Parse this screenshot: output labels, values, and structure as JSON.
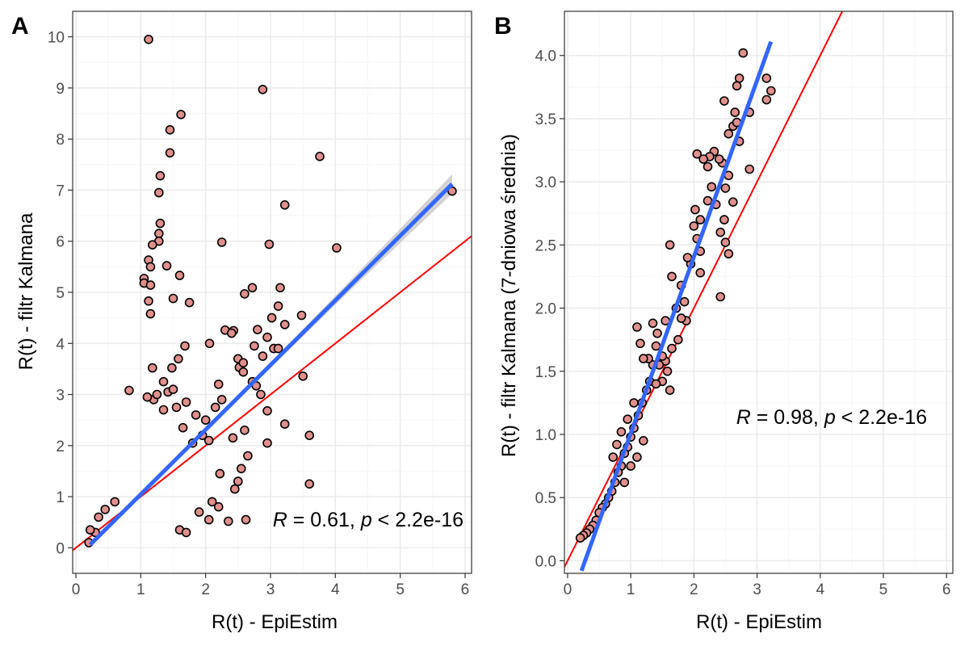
{
  "colors": {
    "points_fill": "#e0908c",
    "points_stroke": "#000000",
    "fit_line": "#3366ff",
    "identity_line": "#ff0000",
    "confidence_band": "#bfbfbf",
    "grid_major": "#ebebeb",
    "grid_minor": "#f5f5f5",
    "panel_border": "#333333"
  },
  "chart_data": [
    {
      "type": "scatter",
      "panel_label": "A",
      "xlabel": "R(t) - EpiEstim",
      "ylabel": "R(t) - filtr Kalmana",
      "xlim": [
        -0.05,
        6.1
      ],
      "ylim": [
        -0.5,
        10.5
      ],
      "xticks": [
        "0",
        "1",
        "2",
        "3",
        "4",
        "5",
        "6"
      ],
      "yticks": [
        "0",
        "1",
        "2",
        "3",
        "4",
        "5",
        "6",
        "7",
        "8",
        "9",
        "10"
      ],
      "grid": true,
      "annotation": {
        "r_symbol": "R",
        "r_text": " = 0.61, ",
        "p_symbol": "p",
        "p_text": " < 2.2e-16"
      },
      "identity_line": {
        "slope": 1,
        "intercept": 0
      },
      "fit_line": {
        "x": [
          0.22,
          5.8
        ],
        "y": [
          0.06,
          7.12
        ],
        "se_band": true
      },
      "points": [
        [
          1.12,
          9.95
        ],
        [
          2.88,
          8.97
        ],
        [
          1.62,
          8.48
        ],
        [
          1.45,
          8.18
        ],
        [
          1.45,
          7.73
        ],
        [
          3.76,
          7.66
        ],
        [
          1.3,
          7.28
        ],
        [
          1.28,
          6.95
        ],
        [
          5.8,
          6.98
        ],
        [
          3.22,
          6.71
        ],
        [
          1.3,
          6.35
        ],
        [
          1.28,
          6.15
        ],
        [
          1.28,
          6.0
        ],
        [
          2.25,
          5.98
        ],
        [
          2.98,
          5.94
        ],
        [
          1.18,
          5.93
        ],
        [
          4.02,
          5.87
        ],
        [
          1.12,
          5.63
        ],
        [
          1.15,
          5.5
        ],
        [
          1.4,
          5.52
        ],
        [
          1.6,
          5.33
        ],
        [
          1.05,
          5.27
        ],
        [
          1.05,
          5.18
        ],
        [
          1.15,
          5.14
        ],
        [
          2.72,
          5.09
        ],
        [
          3.15,
          5.09
        ],
        [
          2.6,
          4.97
        ],
        [
          1.5,
          4.88
        ],
        [
          1.12,
          4.83
        ],
        [
          1.75,
          4.8
        ],
        [
          3.12,
          4.73
        ],
        [
          1.15,
          4.58
        ],
        [
          3.48,
          4.55
        ],
        [
          3.02,
          4.5
        ],
        [
          3.22,
          4.37
        ],
        [
          2.8,
          4.27
        ],
        [
          2.3,
          4.26
        ],
        [
          2.43,
          4.25
        ],
        [
          2.4,
          4.2
        ],
        [
          1.68,
          3.95
        ],
        [
          2.06,
          4.0
        ],
        [
          2.95,
          4.12
        ],
        [
          2.75,
          3.95
        ],
        [
          3.05,
          3.9
        ],
        [
          3.12,
          3.9
        ],
        [
          2.88,
          3.75
        ],
        [
          1.58,
          3.7
        ],
        [
          2.5,
          3.7
        ],
        [
          2.52,
          3.53
        ],
        [
          2.58,
          3.62
        ],
        [
          1.18,
          3.52
        ],
        [
          1.48,
          3.52
        ],
        [
          3.5,
          3.36
        ],
        [
          2.58,
          3.44
        ],
        [
          2.72,
          3.25
        ],
        [
          2.78,
          3.17
        ],
        [
          2.2,
          3.2
        ],
        [
          2.85,
          3.0
        ],
        [
          2.95,
          2.68
        ],
        [
          3.22,
          2.42
        ],
        [
          3.6,
          2.2
        ],
        [
          2.6,
          2.3
        ],
        [
          2.42,
          2.15
        ],
        [
          2.95,
          2.05
        ],
        [
          2.65,
          1.8
        ],
        [
          2.55,
          1.55
        ],
        [
          2.22,
          1.45
        ],
        [
          2.5,
          1.3
        ],
        [
          2.45,
          1.15
        ],
        [
          2.62,
          0.55
        ],
        [
          3.6,
          1.25
        ],
        [
          2.1,
          0.9
        ],
        [
          2.2,
          0.8
        ],
        [
          2.05,
          0.55
        ],
        [
          2.35,
          0.52
        ],
        [
          1.9,
          0.7
        ],
        [
          1.6,
          0.35
        ],
        [
          1.7,
          0.3
        ],
        [
          0.2,
          0.1
        ],
        [
          0.3,
          0.3
        ],
        [
          0.22,
          0.35
        ],
        [
          0.35,
          0.6
        ],
        [
          0.45,
          0.75
        ],
        [
          0.6,
          0.9
        ],
        [
          1.35,
          3.25
        ],
        [
          1.42,
          3.05
        ],
        [
          1.2,
          2.9
        ],
        [
          0.82,
          3.08
        ],
        [
          1.55,
          2.75
        ],
        [
          1.85,
          2.6
        ],
        [
          2.0,
          2.5
        ],
        [
          1.1,
          2.95
        ],
        [
          1.25,
          3.0
        ],
        [
          1.95,
          2.2
        ],
        [
          1.65,
          2.35
        ],
        [
          2.15,
          2.75
        ],
        [
          2.25,
          2.9
        ],
        [
          1.8,
          2.05
        ],
        [
          2.05,
          2.1
        ],
        [
          1.5,
          3.1
        ],
        [
          1.7,
          2.85
        ],
        [
          1.35,
          2.7
        ]
      ]
    },
    {
      "type": "scatter",
      "panel_label": "B",
      "xlabel": "R(t) - EpiEstim",
      "ylabel": "R(t) - filtr Kalmana (7-dniowa średnia)",
      "xlim": [
        -0.05,
        6.1
      ],
      "ylim": [
        -0.1,
        4.35
      ],
      "xticks": [
        "0",
        "1",
        "2",
        "3",
        "4",
        "5",
        "6"
      ],
      "yticks": [
        "0.0",
        "0.5",
        "1.0",
        "1.5",
        "2.0",
        "2.5",
        "3.0",
        "3.5",
        "4.0"
      ],
      "grid": true,
      "annotation": {
        "r_symbol": "R",
        "r_text": " = 0.98, ",
        "p_symbol": "p",
        "p_text": " < 2.2e-16"
      },
      "identity_line": {
        "slope": 1,
        "intercept": 0
      },
      "fit_line": {
        "x": [
          0.22,
          3.22
        ],
        "y": [
          -0.08,
          4.11
        ],
        "se_band": false
      },
      "points": [
        [
          2.78,
          4.02
        ],
        [
          2.72,
          3.82
        ],
        [
          3.15,
          3.82
        ],
        [
          3.22,
          3.72
        ],
        [
          2.68,
          3.76
        ],
        [
          3.15,
          3.65
        ],
        [
          2.48,
          3.64
        ],
        [
          2.65,
          3.55
        ],
        [
          2.88,
          3.55
        ],
        [
          2.62,
          3.44
        ],
        [
          2.68,
          3.47
        ],
        [
          2.55,
          3.38
        ],
        [
          2.72,
          3.32
        ],
        [
          2.05,
          3.22
        ],
        [
          2.32,
          3.24
        ],
        [
          2.25,
          3.2
        ],
        [
          2.45,
          3.15
        ],
        [
          2.4,
          3.18
        ],
        [
          2.22,
          3.12
        ],
        [
          2.15,
          3.18
        ],
        [
          2.88,
          3.1
        ],
        [
          2.55,
          3.05
        ],
        [
          2.5,
          2.95
        ],
        [
          2.28,
          2.96
        ],
        [
          2.22,
          2.85
        ],
        [
          2.02,
          2.78
        ],
        [
          2.35,
          2.82
        ],
        [
          2.62,
          2.84
        ],
        [
          2.48,
          2.7
        ],
        [
          2.1,
          2.7
        ],
        [
          2.0,
          2.65
        ],
        [
          2.42,
          2.6
        ],
        [
          2.5,
          2.52
        ],
        [
          2.55,
          2.43
        ],
        [
          2.05,
          2.55
        ],
        [
          2.1,
          2.45
        ],
        [
          1.95,
          2.35
        ],
        [
          2.1,
          2.28
        ],
        [
          1.9,
          2.4
        ],
        [
          1.62,
          2.5
        ],
        [
          1.65,
          2.25
        ],
        [
          1.8,
          2.18
        ],
        [
          1.85,
          2.05
        ],
        [
          2.42,
          2.09
        ],
        [
          1.88,
          1.9
        ],
        [
          1.75,
          1.75
        ],
        [
          1.65,
          1.68
        ],
        [
          1.55,
          1.58
        ],
        [
          1.45,
          1.55
        ],
        [
          1.4,
          1.7
        ],
        [
          1.42,
          1.8
        ],
        [
          1.5,
          1.42
        ],
        [
          1.35,
          1.55
        ],
        [
          1.28,
          1.6
        ],
        [
          1.15,
          1.72
        ],
        [
          1.2,
          1.6
        ],
        [
          1.1,
          1.85
        ],
        [
          1.62,
          1.35
        ],
        [
          1.58,
          1.5
        ],
        [
          1.3,
          1.42
        ],
        [
          1.25,
          1.35
        ],
        [
          1.18,
          1.25
        ],
        [
          1.12,
          1.15
        ],
        [
          1.05,
          1.05
        ],
        [
          1.0,
          0.98
        ],
        [
          0.95,
          0.9
        ],
        [
          0.9,
          0.85
        ],
        [
          0.85,
          0.75
        ],
        [
          0.8,
          0.7
        ],
        [
          0.75,
          0.62
        ],
        [
          0.7,
          0.55
        ],
        [
          0.65,
          0.5
        ],
        [
          0.6,
          0.45
        ],
        [
          0.55,
          0.42
        ],
        [
          0.5,
          0.38
        ],
        [
          0.45,
          0.32
        ],
        [
          0.4,
          0.28
        ],
        [
          0.35,
          0.25
        ],
        [
          0.3,
          0.22
        ],
        [
          0.25,
          0.2
        ],
        [
          0.2,
          0.18
        ],
        [
          0.85,
          1.02
        ],
        [
          0.95,
          1.12
        ],
        [
          1.05,
          1.25
        ],
        [
          1.4,
          1.4
        ],
        [
          1.5,
          1.62
        ],
        [
          1.35,
          1.88
        ],
        [
          1.55,
          1.9
        ],
        [
          1.72,
          2.0
        ],
        [
          1.8,
          1.92
        ],
        [
          0.9,
          0.62
        ],
        [
          1.0,
          0.75
        ],
        [
          1.1,
          0.82
        ],
        [
          1.2,
          0.95
        ],
        [
          0.72,
          0.82
        ],
        [
          0.78,
          0.92
        ]
      ]
    }
  ]
}
